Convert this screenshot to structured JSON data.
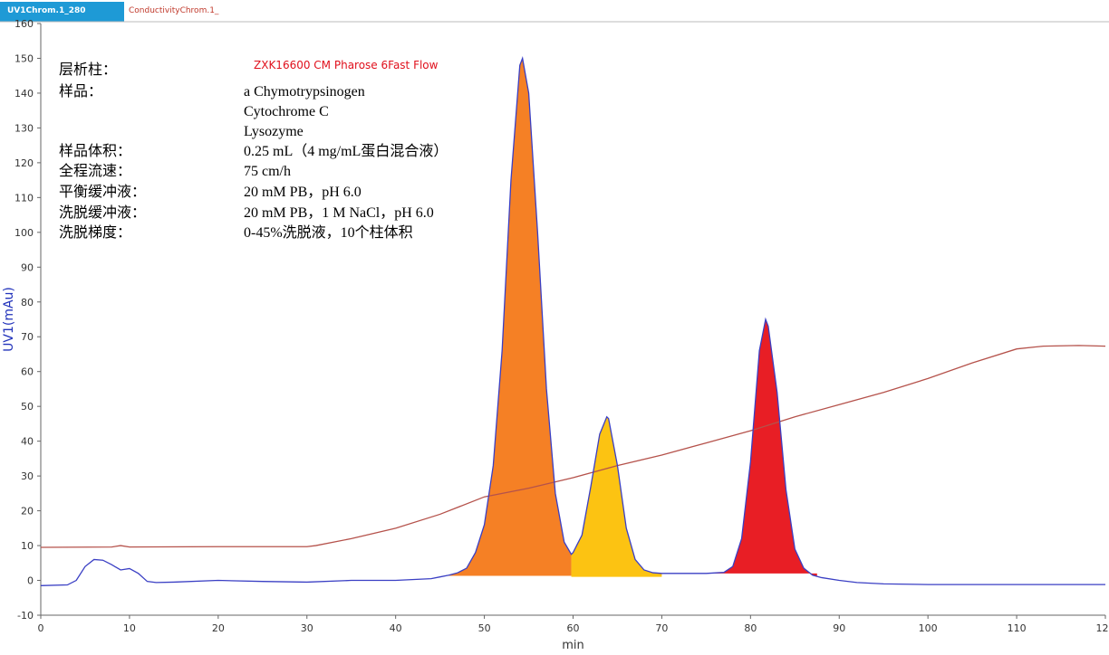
{
  "chart_data": {
    "type": "line",
    "tabs": [
      {
        "text": "UV1Chrom.1_280",
        "color": "#1e9ad6"
      },
      {
        "text": "ConductivityChrom.1_",
        "color": "#c0392b"
      }
    ],
    "xlabel": "min",
    "ylabel": "UV1(mAu)",
    "xlim": [
      0,
      120
    ],
    "xticks": [
      0,
      10,
      20,
      30,
      40,
      50,
      60,
      70,
      80,
      90,
      100,
      110,
      120
    ],
    "ylim": [
      -10,
      160
    ],
    "yticks": [
      -10,
      0,
      10,
      20,
      30,
      40,
      50,
      60,
      70,
      80,
      90,
      100,
      110,
      120,
      130,
      140,
      150,
      160
    ],
    "series": [
      {
        "name": "UV1Chrom.1_280",
        "color": "#3a3fc4",
        "x": [
          0,
          3,
          4,
          5,
          6,
          7,
          8,
          9,
          10,
          11,
          12,
          13,
          15,
          20,
          25,
          30,
          35,
          40,
          44,
          45,
          46,
          47,
          48,
          49,
          50,
          51,
          52,
          53,
          54,
          54.3,
          55,
          56,
          57,
          58,
          59,
          59.8,
          60,
          61,
          62,
          63,
          63.8,
          64,
          65,
          66,
          67,
          68,
          69,
          70,
          72,
          75,
          77,
          78,
          79,
          80,
          81,
          81.7,
          82,
          83,
          84,
          85,
          86,
          87,
          88,
          90,
          92,
          95,
          100,
          110,
          120
        ],
        "values": [
          -1.5,
          -1.3,
          0,
          4,
          6,
          5.8,
          4.5,
          3,
          3.4,
          2,
          -0.3,
          -0.6,
          -0.5,
          0,
          -0.3,
          -0.5,
          0,
          0,
          0.5,
          1,
          1.5,
          2.2,
          3.5,
          8,
          16,
          33,
          66,
          115,
          148,
          150,
          140,
          100,
          55,
          25,
          11,
          7.5,
          8,
          13,
          27,
          42,
          47,
          46.5,
          33,
          15,
          6,
          3,
          2.2,
          2,
          2,
          2,
          2.3,
          4,
          12,
          34,
          66,
          75,
          73,
          54,
          26,
          9,
          3.5,
          1.5,
          0.8,
          0,
          -0.6,
          -1,
          -1.2,
          -1.2,
          -1.2
        ]
      },
      {
        "name": "ConductivityChrom.1_",
        "color": "#b5524b",
        "x": [
          0,
          8,
          9,
          10,
          20,
          30,
          31,
          35,
          40,
          45,
          50,
          55,
          60,
          65,
          70,
          75,
          80,
          85,
          90,
          95,
          100,
          105,
          110,
          113,
          117,
          120
        ],
        "values": [
          9.5,
          9.6,
          10,
          9.6,
          9.7,
          9.7,
          10,
          12,
          15,
          19,
          24,
          26.5,
          29.5,
          33,
          36,
          39.5,
          43,
          47,
          50.5,
          54,
          58,
          62.5,
          66.5,
          67.3,
          67.5,
          67.3
        ]
      }
    ],
    "fill_regions": [
      {
        "from": 45.5,
        "to": 59.8,
        "base": 1.3,
        "color": "#f58025"
      },
      {
        "from": 59.8,
        "to": 70,
        "base": 1,
        "color": "#fcc312"
      },
      {
        "from": 76,
        "to": 87.5,
        "base": 2,
        "color": "#e81e25"
      }
    ],
    "info": {
      "rows": [
        {
          "label": "层析柱：",
          "value": "ZXK16600 CM  Pharose 6Fast Flow"
        },
        {
          "label": "样品：",
          "value": "a Chymotrypsinogen"
        },
        {
          "value": "Cytochrome C"
        },
        {
          "value": "Lysozyme"
        },
        {
          "label": "样品体积：",
          "value": "0.25 mL（4 mg/mL蛋白混合液）"
        },
        {
          "label": "全程流速：",
          "value": "75 cm/h"
        },
        {
          "label": "平衡缓冲液：",
          "value": "20 mM PB，pH 6.0"
        },
        {
          "label": "洗脱缓冲液：",
          "value": "20 mM PB，1 M NaCl，pH 6.0"
        },
        {
          "label": "洗脱梯度：",
          "value": "0-45%洗脱液，10个柱体积"
        }
      ]
    }
  }
}
